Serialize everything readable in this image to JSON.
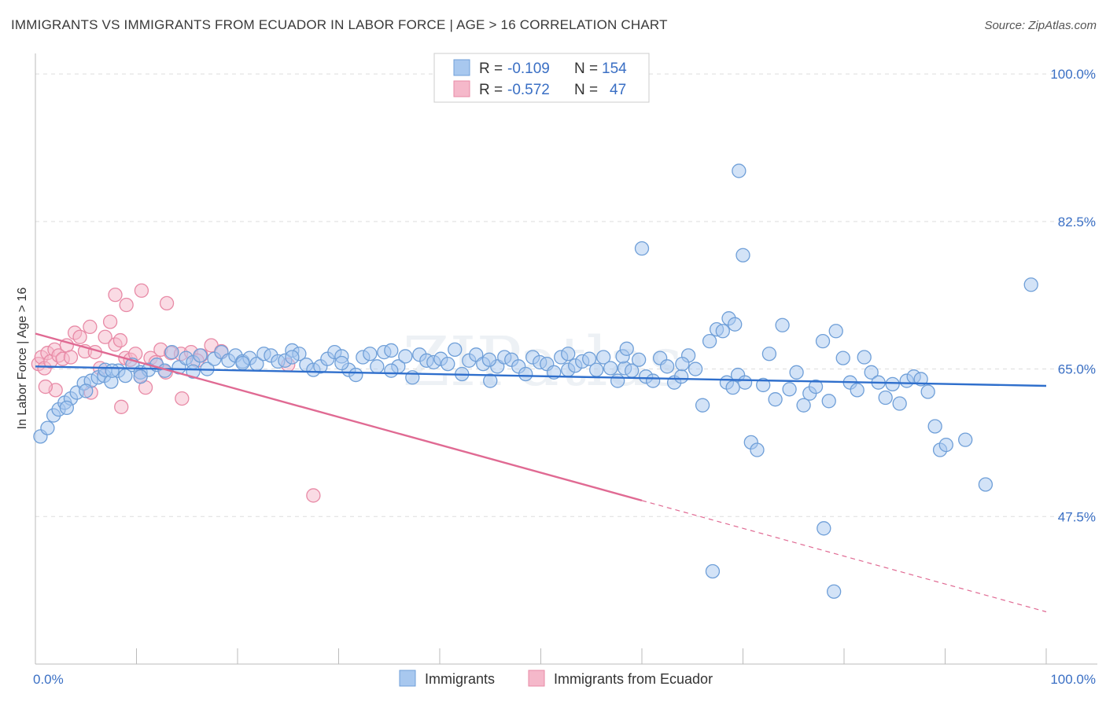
{
  "title": "IMMIGRANTS VS IMMIGRANTS FROM ECUADOR IN LABOR FORCE | AGE > 16 CORRELATION CHART",
  "source": "Source: ZipAtlas.com",
  "watermark": "ZIPatlas",
  "colors": {
    "blue_fill": "#a8c8ef",
    "blue_stroke": "#6f9fd8",
    "blue_line": "#2f6fcc",
    "pink_fill": "#f5b8ca",
    "pink_stroke": "#e88aa6",
    "pink_line": "#e06a93",
    "tick_text": "#3a6fc4",
    "grid": "#dddddd"
  },
  "legend": {
    "rows": [
      {
        "r_label": "R =",
        "r_value": "-0.109",
        "n_label": "N =",
        "n_value": "154"
      },
      {
        "r_label": "R =",
        "r_value": "-0.572",
        "n_label": "N =",
        "n_value": "47"
      }
    ]
  },
  "chart_data": {
    "type": "scatter",
    "ylabel": "In Labor Force | Age > 16",
    "xlabel": "",
    "xlim": [
      0,
      100
    ],
    "ylim": [
      30,
      101.5
    ],
    "x_tick_labels": [
      "0.0%",
      "100.0%"
    ],
    "y_ticks": [
      47.5,
      65.0,
      82.5,
      100.0
    ],
    "y_tick_labels": [
      "47.5%",
      "65.0%",
      "82.5%",
      "100.0%"
    ],
    "grid": true,
    "legend_position": "top-center",
    "series": [
      {
        "name": "Immigrants",
        "trend": {
          "x0": 0,
          "y0": 65.3,
          "x1": 100,
          "y1": 63.0,
          "dashed_from": null
        },
        "points": [
          [
            0.5,
            57.0
          ],
          [
            1.2,
            58.0
          ],
          [
            1.8,
            59.5
          ],
          [
            2.3,
            60.2
          ],
          [
            2.9,
            61.0
          ],
          [
            3.5,
            61.5
          ],
          [
            4.1,
            62.2
          ],
          [
            4.8,
            63.3
          ],
          [
            5.5,
            63.6
          ],
          [
            6.2,
            64.0
          ],
          [
            6.8,
            64.2
          ],
          [
            7.5,
            63.5
          ],
          [
            8.2,
            64.8
          ],
          [
            8.9,
            64.2
          ],
          [
            9.6,
            65.5
          ],
          [
            10.4,
            64.6
          ],
          [
            11.2,
            64.9
          ],
          [
            12.0,
            65.5
          ],
          [
            12.8,
            64.8
          ],
          [
            13.5,
            67.0
          ],
          [
            14.2,
            65.2
          ],
          [
            14.9,
            66.3
          ],
          [
            15.6,
            65.8
          ],
          [
            16.3,
            66.6
          ],
          [
            17.0,
            65.0
          ],
          [
            17.7,
            66.2
          ],
          [
            18.4,
            67.0
          ],
          [
            19.1,
            66.0
          ],
          [
            19.8,
            66.6
          ],
          [
            20.5,
            65.9
          ],
          [
            21.2,
            66.3
          ],
          [
            21.9,
            65.6
          ],
          [
            22.6,
            66.8
          ],
          [
            23.3,
            66.6
          ],
          [
            24.0,
            65.9
          ],
          [
            24.7,
            66.0
          ],
          [
            25.4,
            67.2
          ],
          [
            26.1,
            66.8
          ],
          [
            26.8,
            65.5
          ],
          [
            27.5,
            64.9
          ],
          [
            28.2,
            65.3
          ],
          [
            28.9,
            66.2
          ],
          [
            29.6,
            67.0
          ],
          [
            30.3,
            66.5
          ],
          [
            31.0,
            64.9
          ],
          [
            31.7,
            64.3
          ],
          [
            32.4,
            66.4
          ],
          [
            33.1,
            66.8
          ],
          [
            33.8,
            65.3
          ],
          [
            34.5,
            67.0
          ],
          [
            35.2,
            67.2
          ],
          [
            35.9,
            65.3
          ],
          [
            36.6,
            66.5
          ],
          [
            37.3,
            64.0
          ],
          [
            38.0,
            66.7
          ],
          [
            38.7,
            66.0
          ],
          [
            39.4,
            65.8
          ],
          [
            40.1,
            66.2
          ],
          [
            40.8,
            65.6
          ],
          [
            41.5,
            67.3
          ],
          [
            42.2,
            64.4
          ],
          [
            42.9,
            66.0
          ],
          [
            43.6,
            66.7
          ],
          [
            44.3,
            65.6
          ],
          [
            45.0,
            63.6
          ],
          [
            45.7,
            65.3
          ],
          [
            46.4,
            66.4
          ],
          [
            47.1,
            66.1
          ],
          [
            47.8,
            65.3
          ],
          [
            48.5,
            64.4
          ],
          [
            49.2,
            66.4
          ],
          [
            49.9,
            65.8
          ],
          [
            50.6,
            65.6
          ],
          [
            51.3,
            64.6
          ],
          [
            52.0,
            66.4
          ],
          [
            52.7,
            64.9
          ],
          [
            53.4,
            65.4
          ],
          [
            54.1,
            65.9
          ],
          [
            54.8,
            66.2
          ],
          [
            55.5,
            64.9
          ],
          [
            56.2,
            66.4
          ],
          [
            56.9,
            65.1
          ],
          [
            57.6,
            63.6
          ],
          [
            58.3,
            65.1
          ],
          [
            59.0,
            64.8
          ],
          [
            59.7,
            66.1
          ],
          [
            60.4,
            64.1
          ],
          [
            61.1,
            63.6
          ],
          [
            61.8,
            66.3
          ],
          [
            62.5,
            65.3
          ],
          [
            63.2,
            63.4
          ],
          [
            63.9,
            64.1
          ],
          [
            64.6,
            66.6
          ],
          [
            65.3,
            65.0
          ],
          [
            66.0,
            60.7
          ],
          [
            66.7,
            68.3
          ],
          [
            67.4,
            69.7
          ],
          [
            68.0,
            69.5
          ],
          [
            68.6,
            71.0
          ],
          [
            69.2,
            70.3
          ],
          [
            69.5,
            64.3
          ],
          [
            70.2,
            63.4
          ],
          [
            70.8,
            56.3
          ],
          [
            71.4,
            55.4
          ],
          [
            72.0,
            63.1
          ],
          [
            72.6,
            66.8
          ],
          [
            73.2,
            61.4
          ],
          [
            73.9,
            70.2
          ],
          [
            74.6,
            62.6
          ],
          [
            75.3,
            64.6
          ],
          [
            76.0,
            60.7
          ],
          [
            76.6,
            62.1
          ],
          [
            77.2,
            62.9
          ],
          [
            77.9,
            68.3
          ],
          [
            78.5,
            61.2
          ],
          [
            79.2,
            69.5
          ],
          [
            79.9,
            66.3
          ],
          [
            80.6,
            63.4
          ],
          [
            81.3,
            62.5
          ],
          [
            82.0,
            66.4
          ],
          [
            82.7,
            64.6
          ],
          [
            83.4,
            63.4
          ],
          [
            84.1,
            61.6
          ],
          [
            84.8,
            63.2
          ],
          [
            85.5,
            60.9
          ],
          [
            86.2,
            63.6
          ],
          [
            86.9,
            64.1
          ],
          [
            87.6,
            63.8
          ],
          [
            88.3,
            62.3
          ],
          [
            89.0,
            58.2
          ],
          [
            89.5,
            55.4
          ],
          [
            90.1,
            56.0
          ],
          [
            68.4,
            63.4
          ],
          [
            69.0,
            62.8
          ],
          [
            52.7,
            66.8
          ],
          [
            44.9,
            66.1
          ],
          [
            35.2,
            64.8
          ],
          [
            30.3,
            65.7
          ],
          [
            25.4,
            66.4
          ],
          [
            20.5,
            65.7
          ],
          [
            15.6,
            64.7
          ],
          [
            10.4,
            64.1
          ],
          [
            5.0,
            62.4
          ],
          [
            3.1,
            60.4
          ],
          [
            6.9,
            64.9
          ],
          [
            7.6,
            64.8
          ],
          [
            70.0,
            78.5
          ],
          [
            69.6,
            88.5
          ],
          [
            60.0,
            79.3
          ],
          [
            98.5,
            75.0
          ],
          [
            92.0,
            56.6
          ],
          [
            94.0,
            51.3
          ],
          [
            78.0,
            46.1
          ],
          [
            67.0,
            41.0
          ],
          [
            79.0,
            38.6
          ],
          [
            58.1,
            66.5
          ],
          [
            64.0,
            65.6
          ],
          [
            58.5,
            67.4
          ]
        ]
      },
      {
        "name": "Immigrants from Ecuador",
        "trend": {
          "x0": 0,
          "y0": 69.2,
          "x1": 100,
          "y1": 36.2,
          "dashed_from": 60
        },
        "points": [
          [
            0.3,
            65.6
          ],
          [
            0.6,
            66.4
          ],
          [
            0.9,
            65.1
          ],
          [
            1.2,
            66.9
          ],
          [
            1.5,
            65.9
          ],
          [
            1.9,
            67.3
          ],
          [
            2.3,
            66.6
          ],
          [
            2.7,
            66.2
          ],
          [
            3.1,
            67.8
          ],
          [
            3.5,
            66.4
          ],
          [
            3.9,
            69.3
          ],
          [
            4.4,
            68.8
          ],
          [
            4.9,
            67.1
          ],
          [
            5.4,
            70.0
          ],
          [
            5.9,
            67.0
          ],
          [
            6.4,
            65.1
          ],
          [
            6.9,
            68.8
          ],
          [
            7.4,
            70.6
          ],
          [
            7.9,
            67.9
          ],
          [
            8.4,
            68.4
          ],
          [
            8.9,
            66.3
          ],
          [
            9.4,
            66.1
          ],
          [
            9.9,
            66.8
          ],
          [
            10.4,
            64.1
          ],
          [
            10.9,
            62.8
          ],
          [
            11.4,
            66.3
          ],
          [
            11.9,
            65.8
          ],
          [
            12.4,
            67.3
          ],
          [
            12.9,
            64.6
          ],
          [
            13.4,
            66.9
          ],
          [
            14.4,
            66.8
          ],
          [
            15.4,
            67.0
          ],
          [
            16.4,
            66.6
          ],
          [
            17.4,
            67.8
          ],
          [
            18.4,
            67.1
          ],
          [
            9.0,
            72.6
          ],
          [
            10.5,
            74.3
          ],
          [
            13.0,
            72.8
          ],
          [
            7.9,
            73.8
          ],
          [
            16.0,
            66.0
          ],
          [
            8.5,
            60.5
          ],
          [
            5.5,
            62.2
          ],
          [
            14.5,
            61.5
          ],
          [
            2.0,
            62.5
          ],
          [
            1.0,
            62.9
          ],
          [
            25.0,
            65.5
          ],
          [
            27.5,
            50.0
          ]
        ]
      }
    ]
  },
  "bottom_legend": [
    "Immigrants",
    "Immigrants from Ecuador"
  ]
}
